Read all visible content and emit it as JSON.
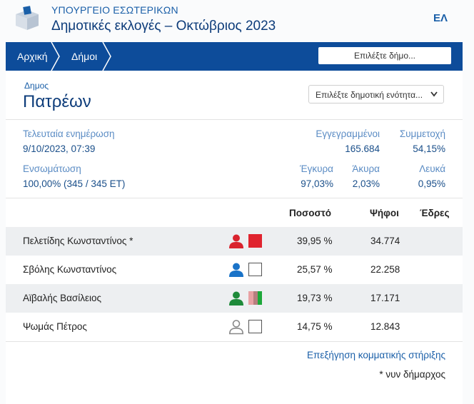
{
  "header": {
    "ministry": "ΥΠΟΥΡΓΕΙΟ ΕΣΩΤΕΡΙΚΩΝ",
    "title": "Δημοτικές εκλογές – Οκτώβριος 2023",
    "lang": "ΕΛ"
  },
  "nav": {
    "breadcrumb": [
      "Αρχική",
      "Δήμοι"
    ],
    "select_label": "Επιλέξτε δήμο..."
  },
  "municipality": {
    "label": "Δημος",
    "name": "Πατρέων",
    "unit_select": "Επιλέξτε δημοτική ενότητα..."
  },
  "stats": {
    "last_update_label": "Τελευταία ενημέρωση",
    "last_update_value": "9/10/2023, 07:39",
    "registered_label": "Εγγεγραμμένοι",
    "registered_value": "165.684",
    "turnout_label": "Συμμετοχή",
    "turnout_value": "54,15%",
    "integration_label": "Ενσωμάτωση",
    "integration_value": "100,00% (345 / 345 ΕΤ)",
    "valid_label": "Έγκυρα",
    "valid_value": "97,03%",
    "invalid_label": "Άκυρα",
    "invalid_value": "2,03%",
    "blank_label": "Λευκά",
    "blank_value": "0,95%"
  },
  "table": {
    "headers": {
      "percent": "Ποσοστό",
      "votes": "Ψήφοι",
      "seats": "Έδρες"
    },
    "rows": [
      {
        "name": "Πελετίδης Κωνσταντίνος *",
        "percent": "39,95 %",
        "votes": "34.774",
        "person_color": "#d9232e",
        "box": "red"
      },
      {
        "name": "Σβόλης Κωνσταντίνος",
        "percent": "25,57 %",
        "votes": "22.258",
        "person_color": "#1a73c8",
        "box": "white"
      },
      {
        "name": "Αϊβαλής Βασίλειος",
        "percent": "19,73 %",
        "votes": "17.171",
        "person_color": "#1e8a3a",
        "box": "tricolor"
      },
      {
        "name": "Ψωμάς Πέτρος",
        "percent": "14,75 %",
        "votes": "12.843",
        "person_color": "#888888",
        "box": "white"
      }
    ]
  },
  "footer": {
    "link": "Επεξήγηση κομματικής στήριξης",
    "note": "* νυν δήμαρχος"
  }
}
